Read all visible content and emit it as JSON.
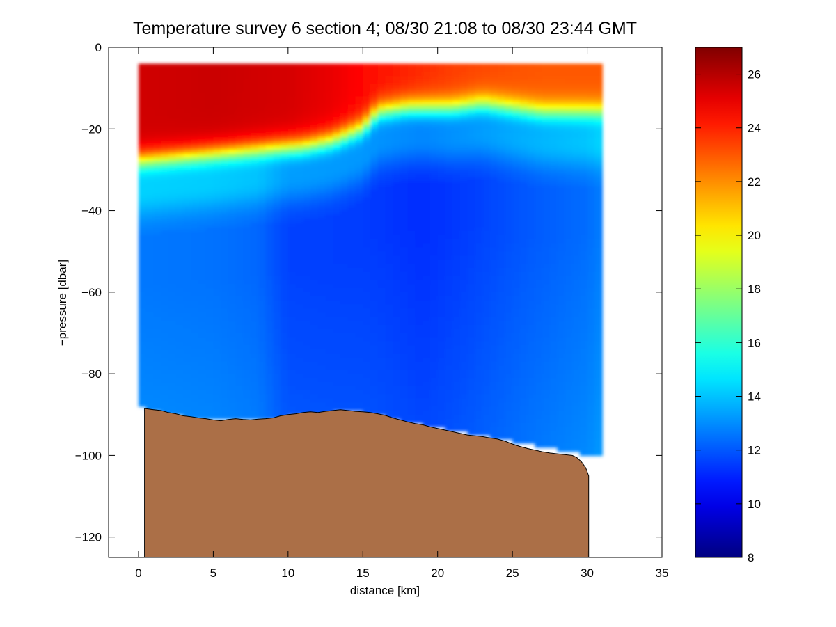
{
  "chart_data": {
    "type": "heatmap",
    "title": "Temperature survey 6 section 4; 08/30 21:08 to 08/30 23:44 GMT",
    "xlabel": "distance [km]",
    "ylabel": "−pressure [dbar]",
    "xlim": [
      -2,
      35
    ],
    "ylim": [
      -125,
      0
    ],
    "xticks": [
      0,
      5,
      10,
      15,
      20,
      25,
      30,
      35
    ],
    "yticks": [
      0,
      -20,
      -40,
      -60,
      -80,
      -100,
      -120
    ],
    "xtick_labels": [
      "0",
      "5",
      "10",
      "15",
      "20",
      "25",
      "30",
      "35"
    ],
    "ytick_labels": [
      "0",
      "−20",
      "−40",
      "−60",
      "−80",
      "−100",
      "−120"
    ],
    "colorbar": {
      "range": [
        8,
        27
      ],
      "ticks": [
        8,
        10,
        12,
        14,
        16,
        18,
        20,
        22,
        24,
        26
      ],
      "tick_labels": [
        "8",
        "10",
        "12",
        "14",
        "16",
        "18",
        "20",
        "22",
        "24",
        "26"
      ],
      "colormap": "jet"
    },
    "colors": {
      "seafloor_fill": "#ab6f47",
      "seafloor_line": "#000000"
    },
    "thermocline_depth": [
      [
        0,
        -28
      ],
      [
        3,
        -27
      ],
      [
        6,
        -26
      ],
      [
        9,
        -25
      ],
      [
        11,
        -24.5
      ],
      [
        13,
        -23
      ],
      [
        15,
        -20
      ],
      [
        16,
        -16
      ],
      [
        18,
        -15
      ],
      [
        21,
        -15
      ],
      [
        23,
        -14
      ],
      [
        25,
        -15
      ],
      [
        27,
        -16
      ],
      [
        30,
        -16
      ]
    ],
    "surface_temperature": [
      [
        0,
        25.5
      ],
      [
        5,
        25.6
      ],
      [
        10,
        25.4
      ],
      [
        13,
        25.0
      ],
      [
        15,
        24.5
      ],
      [
        18,
        24.0
      ],
      [
        21,
        23.5
      ],
      [
        24,
        23.2
      ],
      [
        27,
        23.0
      ],
      [
        30,
        23.0
      ]
    ],
    "deep_temperature": [
      [
        0,
        12.6
      ],
      [
        5,
        12.5
      ],
      [
        8,
        12.3
      ],
      [
        10,
        11.6
      ],
      [
        15,
        11.5
      ],
      [
        19,
        11.2
      ],
      [
        22,
        11.5
      ],
      [
        26,
        12.0
      ],
      [
        30,
        12.4
      ],
      [
        31,
        12.7
      ]
    ],
    "data_extent": {
      "x_start": 0,
      "x_end": 30.8,
      "top_depth": -4,
      "bottom_profile": [
        [
          0,
          -87
        ],
        [
          0.4,
          -88
        ],
        [
          3,
          -90
        ],
        [
          6,
          -91
        ],
        [
          10,
          -90
        ],
        [
          13,
          -89
        ],
        [
          15,
          -89
        ],
        [
          19,
          -92
        ],
        [
          22,
          -94
        ],
        [
          25,
          -96
        ],
        [
          28,
          -98
        ],
        [
          29.5,
          -99
        ],
        [
          30.8,
          -100
        ]
      ]
    },
    "bathymetry": [
      [
        0.4,
        -88.5
      ],
      [
        1,
        -88.8
      ],
      [
        1.5,
        -89
      ],
      [
        2,
        -89.5
      ],
      [
        2.5,
        -89.8
      ],
      [
        3,
        -90.3
      ],
      [
        3.5,
        -90.5
      ],
      [
        4,
        -90.8
      ],
      [
        4.5,
        -91
      ],
      [
        5,
        -91.3
      ],
      [
        5.5,
        -91.5
      ],
      [
        6,
        -91.2
      ],
      [
        6.5,
        -91
      ],
      [
        7,
        -91.2
      ],
      [
        7.5,
        -91.3
      ],
      [
        8,
        -91.1
      ],
      [
        8.5,
        -91
      ],
      [
        9,
        -90.8
      ],
      [
        9.5,
        -90.3
      ],
      [
        10,
        -90
      ],
      [
        10.5,
        -89.8
      ],
      [
        11,
        -89.5
      ],
      [
        11.5,
        -89.3
      ],
      [
        12,
        -89.5
      ],
      [
        12.5,
        -89.2
      ],
      [
        13,
        -89
      ],
      [
        13.5,
        -88.8
      ],
      [
        14,
        -89
      ],
      [
        14.5,
        -89.2
      ],
      [
        15,
        -89.3
      ],
      [
        15.5,
        -89.5
      ],
      [
        16,
        -89.8
      ],
      [
        16.5,
        -90.2
      ],
      [
        17,
        -90.8
      ],
      [
        17.5,
        -91.3
      ],
      [
        18,
        -91.8
      ],
      [
        18.5,
        -92.2
      ],
      [
        19,
        -92.5
      ],
      [
        19.5,
        -93
      ],
      [
        20,
        -93.4
      ],
      [
        20.5,
        -93.8
      ],
      [
        21,
        -94.2
      ],
      [
        21.5,
        -94.6
      ],
      [
        22,
        -95
      ],
      [
        22.5,
        -95.2
      ],
      [
        23,
        -95.4
      ],
      [
        23.5,
        -95.7
      ],
      [
        24,
        -96
      ],
      [
        24.5,
        -96.5
      ],
      [
        25,
        -97.2
      ],
      [
        25.5,
        -97.8
      ],
      [
        26,
        -98.3
      ],
      [
        26.5,
        -98.7
      ],
      [
        27,
        -99.1
      ],
      [
        27.5,
        -99.4
      ],
      [
        28,
        -99.6
      ],
      [
        28.5,
        -99.8
      ],
      [
        29,
        -100
      ],
      [
        29.3,
        -100.5
      ],
      [
        29.6,
        -101.5
      ],
      [
        29.9,
        -103
      ],
      [
        30.1,
        -105
      ],
      [
        30.1,
        -125
      ]
    ]
  }
}
